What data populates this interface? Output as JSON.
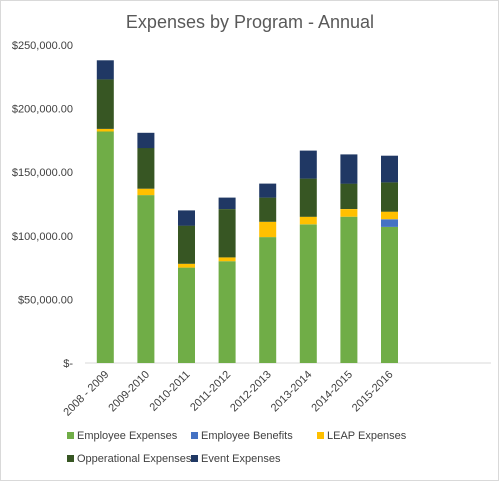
{
  "chart_data": {
    "type": "bar",
    "stacked": true,
    "title": "Expenses by Program - Annual",
    "xlabel": "",
    "ylabel": "",
    "ylim": [
      0,
      250000
    ],
    "y_ticks": [
      {
        "value": 0,
        "label": "$-"
      },
      {
        "value": 50000,
        "label": "$50,000.00"
      },
      {
        "value": 100000,
        "label": "$100,000.00"
      },
      {
        "value": 150000,
        "label": "$150,000.00"
      },
      {
        "value": 200000,
        "label": "$200,000.00"
      },
      {
        "value": 250000,
        "label": "$250,000.00"
      }
    ],
    "grid": false,
    "legend_position": "bottom",
    "categories": [
      "2008 - 2009",
      "2009-2010",
      "2010-2011",
      "2011-2012",
      "2012-2013",
      "2013-2014",
      "2014-2015",
      "2015-2016"
    ],
    "series": [
      {
        "name": "Employee Expenses",
        "color": "#70ad47",
        "values": [
          182000,
          132000,
          75000,
          80000,
          99000,
          109000,
          115000,
          107000
        ]
      },
      {
        "name": "Employee Benefits",
        "color": "#4472c4",
        "values": [
          0,
          0,
          0,
          0,
          0,
          0,
          0,
          6000
        ]
      },
      {
        "name": "LEAP Expenses",
        "color": "#ffc000",
        "values": [
          2000,
          5000,
          3000,
          3000,
          12000,
          6000,
          6000,
          6000
        ]
      },
      {
        "name": "Opperational Expenses",
        "color": "#375623",
        "values": [
          39000,
          32000,
          30000,
          38000,
          19000,
          30000,
          20000,
          23000
        ]
      },
      {
        "name": "Event Expenses",
        "color": "#203864",
        "values": [
          15000,
          12000,
          12000,
          9000,
          11000,
          22000,
          23000,
          21000
        ]
      }
    ]
  }
}
